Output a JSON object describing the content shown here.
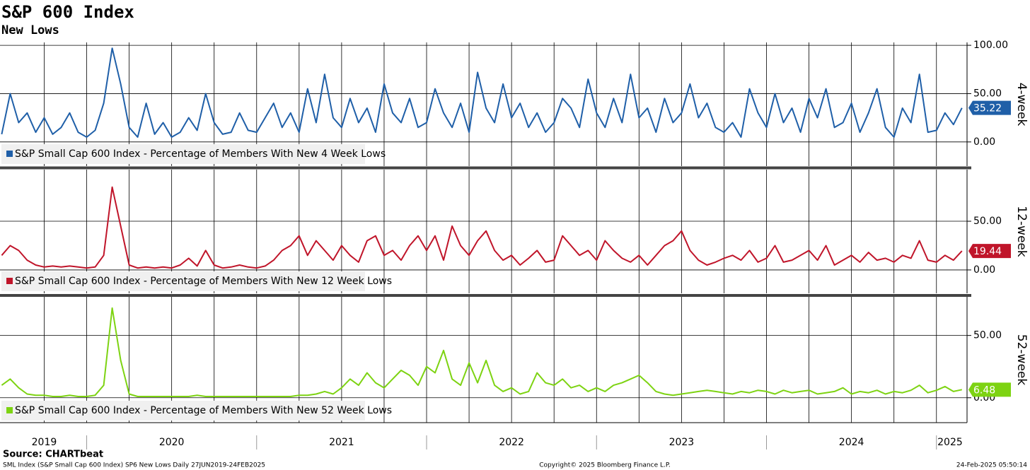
{
  "chart_data": {
    "type": "line",
    "title": "S&P 600 Index",
    "subtitle": "New Lows",
    "x": [
      2019.5,
      2019.55,
      2019.6,
      2019.65,
      2019.7,
      2019.75,
      2019.8,
      2019.85,
      2019.9,
      2019.95,
      2020,
      2020.05,
      2020.1,
      2020.15,
      2020.2,
      2020.25,
      2020.3,
      2020.35,
      2020.4,
      2020.45,
      2020.5,
      2020.55,
      2020.6,
      2020.65,
      2020.7,
      2020.75,
      2020.8,
      2020.85,
      2020.9,
      2020.95,
      2021,
      2021.05,
      2021.1,
      2021.15,
      2021.2,
      2021.25,
      2021.3,
      2021.35,
      2021.4,
      2021.45,
      2021.5,
      2021.55,
      2021.6,
      2021.65,
      2021.7,
      2021.75,
      2021.8,
      2021.85,
      2021.9,
      2021.95,
      2022,
      2022.05,
      2022.1,
      2022.15,
      2022.2,
      2022.25,
      2022.3,
      2022.35,
      2022.4,
      2022.45,
      2022.5,
      2022.55,
      2022.6,
      2022.65,
      2022.7,
      2022.75,
      2022.8,
      2022.85,
      2022.9,
      2022.95,
      2023,
      2023.05,
      2023.1,
      2023.15,
      2023.2,
      2023.25,
      2023.3,
      2023.35,
      2023.4,
      2023.45,
      2023.5,
      2023.55,
      2023.6,
      2023.65,
      2023.7,
      2023.75,
      2023.8,
      2023.85,
      2023.9,
      2023.95,
      2024,
      2024.05,
      2024.1,
      2024.15,
      2024.2,
      2024.25,
      2024.3,
      2024.35,
      2024.4,
      2024.45,
      2024.5,
      2024.55,
      2024.6,
      2024.65,
      2024.7,
      2024.75,
      2024.8,
      2024.85,
      2024.9,
      2024.95,
      2025,
      2025.05,
      2025.1,
      2025.15
    ],
    "xlim": [
      2019.49,
      2025.18
    ],
    "xticks": [
      {
        "value": 2019.75,
        "label": "2019"
      },
      {
        "value": 2020.5,
        "label": "2020"
      },
      {
        "value": 2021.5,
        "label": "2021"
      },
      {
        "value": 2022.5,
        "label": "2022"
      },
      {
        "value": 2023.5,
        "label": "2023"
      },
      {
        "value": 2024.5,
        "label": "2024"
      },
      {
        "value": 2025.08,
        "label": "2025"
      }
    ],
    "xgrid": [
      2019.75,
      2020,
      2020.25,
      2020.5,
      2020.75,
      2021,
      2021.25,
      2021.5,
      2021.75,
      2022,
      2022.25,
      2022.5,
      2022.75,
      2023,
      2023.25,
      2023.5,
      2023.75,
      2024,
      2024.25,
      2024.5,
      2024.75,
      2025
    ],
    "panels": [
      {
        "label": "4-week",
        "ylim": [
          -25,
          103
        ],
        "yticks": [
          {
            "value": 0,
            "label": "0.00"
          },
          {
            "value": 50,
            "label": "50.00"
          },
          {
            "value": 100,
            "label": "100.00"
          }
        ],
        "last_value_label": "35.22",
        "series": [
          {
            "name": "S&P Small Cap 600 Index - Percentage of Members With New 4 Week Lows",
            "color": "#1f5fa8",
            "values": [
              8,
              50,
              20,
              30,
              10,
              25,
              8,
              15,
              30,
              10,
              5,
              12,
              40,
              97,
              60,
              15,
              5,
              40,
              8,
              20,
              5,
              10,
              25,
              12,
              50,
              20,
              8,
              10,
              30,
              12,
              10,
              25,
              40,
              15,
              30,
              10,
              55,
              20,
              70,
              25,
              15,
              45,
              20,
              35,
              10,
              60,
              30,
              20,
              45,
              15,
              20,
              55,
              30,
              15,
              40,
              10,
              72,
              35,
              20,
              60,
              25,
              40,
              15,
              30,
              10,
              20,
              45,
              35,
              15,
              65,
              30,
              15,
              45,
              20,
              70,
              25,
              35,
              10,
              45,
              20,
              30,
              60,
              25,
              40,
              15,
              10,
              20,
              5,
              55,
              30,
              15,
              50,
              20,
              35,
              10,
              45,
              25,
              55,
              15,
              20,
              40,
              10,
              30,
              55,
              15,
              5,
              35,
              20,
              70,
              10,
              12,
              30,
              18,
              35.22
            ]
          }
        ]
      },
      {
        "label": "12-week",
        "ylim": [
          -24,
          103
        ],
        "yticks": [
          {
            "value": 0,
            "label": "0.00"
          },
          {
            "value": 50,
            "label": "50.00"
          }
        ],
        "last_value_label": "19.44",
        "series": [
          {
            "name": "S&P Small Cap 600 Index - Percentage of Members With New 12 Week Lows",
            "color": "#c0152a",
            "values": [
              15,
              25,
              20,
              10,
              5,
              3,
              4,
              3,
              4,
              3,
              2,
              3,
              15,
              85,
              45,
              5,
              2,
              3,
              2,
              3,
              2,
              5,
              12,
              4,
              20,
              5,
              2,
              3,
              5,
              3,
              2,
              4,
              10,
              20,
              25,
              35,
              15,
              30,
              20,
              10,
              25,
              15,
              8,
              30,
              35,
              15,
              20,
              10,
              25,
              35,
              20,
              35,
              10,
              45,
              25,
              15,
              30,
              40,
              20,
              10,
              15,
              5,
              12,
              20,
              8,
              10,
              35,
              25,
              15,
              20,
              10,
              30,
              20,
              12,
              8,
              15,
              5,
              15,
              25,
              30,
              40,
              20,
              10,
              5,
              8,
              12,
              15,
              10,
              20,
              8,
              12,
              25,
              8,
              10,
              15,
              20,
              10,
              25,
              5,
              10,
              15,
              8,
              18,
              10,
              12,
              8,
              15,
              12,
              30,
              10,
              8,
              15,
              10,
              19.44
            ]
          }
        ]
      },
      {
        "label": "52-week",
        "ylim": [
          -20,
          81
        ],
        "yticks": [
          {
            "value": 0,
            "label": "0.00"
          },
          {
            "value": 50,
            "label": "50.00"
          }
        ],
        "last_value_label": "6.48",
        "series": [
          {
            "name": "S&P Small Cap 600 Index - Percentage of Members With New 52 Week Lows",
            "color": "#7dd312",
            "values": [
              10,
              15,
              8,
              3,
              2,
              2,
              1,
              1,
              2,
              1,
              1,
              2,
              10,
              72,
              30,
              3,
              1,
              1,
              1,
              1,
              1,
              1,
              1,
              2,
              1,
              1,
              1,
              1,
              1,
              1,
              1,
              1,
              1,
              1,
              1,
              2,
              2,
              3,
              5,
              3,
              8,
              15,
              10,
              20,
              12,
              8,
              15,
              22,
              18,
              10,
              25,
              20,
              38,
              15,
              10,
              28,
              12,
              30,
              10,
              5,
              8,
              3,
              5,
              20,
              12,
              10,
              15,
              8,
              10,
              5,
              8,
              5,
              10,
              12,
              15,
              18,
              12,
              5,
              3,
              2,
              3,
              4,
              5,
              6,
              5,
              4,
              3,
              5,
              4,
              6,
              5,
              3,
              6,
              4,
              5,
              6,
              3,
              4,
              5,
              8,
              3,
              5,
              4,
              6,
              3,
              5,
              4,
              6,
              10,
              4,
              6,
              9,
              5,
              6.48
            ]
          }
        ]
      }
    ],
    "source": "Source: CHARTbeat",
    "footer_left": "SML Index (S&P Small Cap 600 Index) SP6 New Lows  Daily 27JUN2019-24FEB2025",
    "footer_center": "Copyright© 2025 Bloomberg Finance L.P.",
    "footer_right": "24-Feb-2025 05:50:14"
  }
}
